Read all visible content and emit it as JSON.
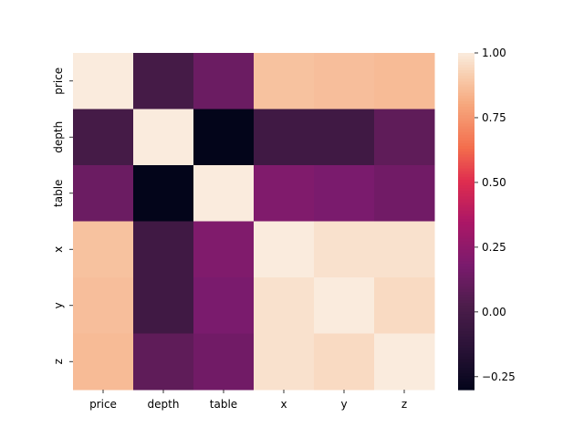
{
  "chart_data": {
    "type": "heatmap",
    "title": "",
    "xlabel": "",
    "ylabel": "",
    "x_categories": [
      "price",
      "depth",
      "table",
      "x",
      "y",
      "z"
    ],
    "y_categories": [
      "price",
      "depth",
      "table",
      "x",
      "y",
      "z"
    ],
    "values": [
      [
        1.0,
        -0.01,
        0.13,
        0.88,
        0.87,
        0.86
      ],
      [
        -0.01,
        1.0,
        -0.3,
        -0.03,
        -0.03,
        0.09
      ],
      [
        0.13,
        -0.3,
        1.0,
        0.2,
        0.18,
        0.15
      ],
      [
        0.88,
        -0.03,
        0.2,
        1.0,
        0.97,
        0.97
      ],
      [
        0.87,
        -0.03,
        0.18,
        0.97,
        1.0,
        0.95
      ],
      [
        0.86,
        0.09,
        0.15,
        0.97,
        0.95,
        1.0
      ]
    ],
    "colorbar": {
      "min": -0.3,
      "max": 1.0,
      "ticks": [
        -0.25,
        0.0,
        0.25,
        0.5,
        0.75,
        1.0
      ],
      "tick_labels": [
        "−0.25",
        "0.00",
        "0.25",
        "0.50",
        "0.75",
        "1.00"
      ],
      "colormap": "rocket"
    },
    "grid": false,
    "legend": "colorbar-right"
  }
}
